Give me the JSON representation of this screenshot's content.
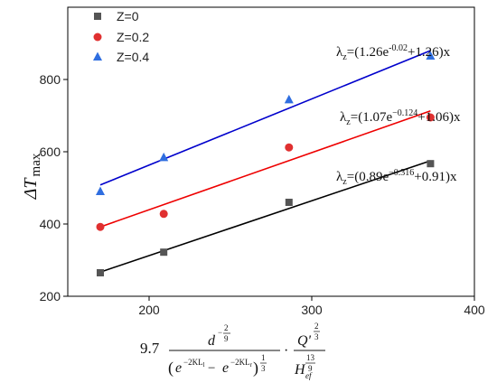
{
  "chart_data": {
    "type": "scatter",
    "title": "",
    "xlabel": "",
    "ylabel": "ΔT max",
    "ylabel_main": "ΔT",
    "ylabel_sub": "max",
    "xlim": [
      150,
      400
    ],
    "ylim": [
      200,
      1000
    ],
    "xticks": [
      200,
      300,
      400
    ],
    "yticks": [
      200,
      400,
      600,
      800
    ],
    "grid": false,
    "legend_position": "top-left",
    "series": [
      {
        "name": "Z=0",
        "color": "#555555",
        "marker": "square",
        "line_color": "#000000",
        "x": [
          170,
          209,
          286,
          373
        ],
        "y": [
          265,
          322,
          460,
          567
        ],
        "fit": {
          "x": [
            170,
            373
          ],
          "y": [
            267,
            575
          ]
        },
        "annotation": {
          "lambda": "λ",
          "sub": "z",
          "eq_start": "=(0.89e",
          "exp": "−0.316",
          "eq_end": "+0.91)x"
        }
      },
      {
        "name": "Z=0.2",
        "color": "#e03030",
        "marker": "circle",
        "line_color": "#ee0000",
        "x": [
          170,
          209,
          286,
          373
        ],
        "y": [
          392,
          428,
          612,
          695
        ],
        "fit": {
          "x": [
            170,
            373
          ],
          "y": [
            392,
            713
          ]
        },
        "annotation": {
          "lambda": "λ",
          "sub": "z",
          "eq_start": "=(1.07e",
          "exp": "−0.124",
          "eq_end": "+1.06)x"
        }
      },
      {
        "name": "Z=0.4",
        "color": "#2f6ee0",
        "marker": "triangle",
        "line_color": "#0000cc",
        "x": [
          170,
          209,
          286,
          373
        ],
        "y": [
          490,
          584,
          744,
          865
        ],
        "fit": {
          "x": [
            170,
            373
          ],
          "y": [
            508,
            880
          ]
        },
        "annotation": {
          "lambda": "λ",
          "sub": "z",
          "eq_start": "=(1.26e",
          "exp": "-0.02",
          "eq_end": "+1.26)x"
        }
      }
    ],
    "x_formula": {
      "coef": "9.7",
      "num1": "d",
      "num1_exp_num": "2",
      "num1_exp_den": "9",
      "num1_exp_sign": "−",
      "den1_open": "(",
      "den1_e": "e",
      "den1_exp_a": "−2KL",
      "den1_exp_a_sub": "l",
      "den1_minus": " − ",
      "den1_exp_b": "−2KL",
      "den1_exp_b_sub": "r",
      "den1_close": ")",
      "den1_exp_num": "1",
      "den1_exp_den": "3",
      "dot": "·",
      "num2": "Q'",
      "num2_exp_num": "2",
      "num2_exp_den": "3",
      "den2": "H",
      "den2_sub": "ef",
      "den2_exp_num": "13",
      "den2_exp_den": "9"
    }
  }
}
